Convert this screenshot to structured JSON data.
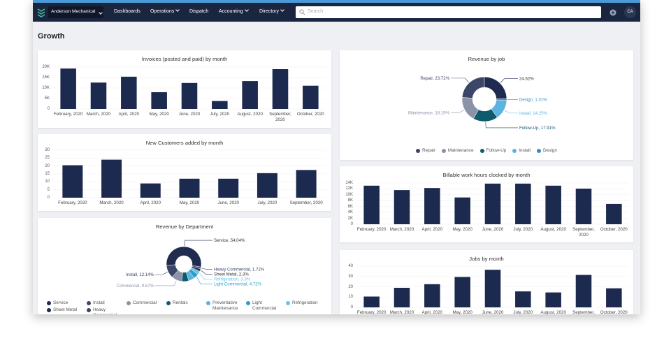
{
  "nav": {
    "company": "Anderson Mechanical",
    "links": [
      "Dashboards",
      "Operations",
      "Dispatch",
      "Accounting",
      "Directory"
    ],
    "search_placeholder": "Search",
    "avatar": "CA"
  },
  "page_title": "Growth",
  "chart_data": [
    {
      "type": "bar",
      "title": "Invoices (posted and paid) by month",
      "color": "#1b2a4e",
      "grid": true,
      "categories": [
        "February, 2020",
        "March, 2020",
        "April, 2020",
        "May, 2020",
        "June, 2020",
        "July, 2020",
        "August, 2020",
        "September, 2020",
        "October, 2020"
      ],
      "values": [
        19300,
        12600,
        15400,
        8000,
        12400,
        3800,
        13300,
        19000,
        11100
      ],
      "ylim": [
        0,
        20000
      ],
      "yticks": [
        0,
        {
          "value": 5000,
          "label": "5K"
        },
        {
          "value": 10000,
          "label": "10K"
        },
        {
          "value": 15000,
          "label": "15K"
        },
        {
          "value": 20000,
          "label": "20K"
        }
      ]
    },
    {
      "type": "bar",
      "title": "New Customers added by month",
      "color": "#1b2a4e",
      "grid": true,
      "categories": [
        "February, 2020",
        "March, 2020",
        "April, 2020",
        "May, 2020",
        "June, 2020",
        "July, 2020",
        "September, 2020"
      ],
      "values": [
        20.5,
        24,
        9,
        12,
        12,
        15.5,
        17.5
      ],
      "ylim": [
        0,
        30
      ],
      "yticks": [
        0,
        5,
        10,
        15,
        20,
        25,
        30
      ]
    },
    {
      "type": "pie",
      "title": "Revenue by Department",
      "categories": [
        "Service",
        "Install",
        "Commercial",
        "Rentals",
        "Preventative Maintenance",
        "Light Commercial",
        "Refrigeration",
        "Sheet Metal",
        "Heavy Commercial"
      ],
      "values": [
        54.04,
        12.14,
        9.67,
        6.5,
        5.61,
        4.72,
        3.3,
        2.3,
        1.72
      ],
      "value_labels": [
        "Service, 54.04%",
        "Install, 12.14%",
        "Commercial, 9.67%",
        null,
        null,
        "Light Commercial, 4.72%",
        "Refrigeration, 3.3%",
        "Sheet Metal, 2.3%",
        "Heavy Commercial, 1.72%"
      ],
      "colors": [
        "#1f2b4f",
        "#3c4767",
        "#8d93a6",
        "#0f5b6d",
        "#5bb3df",
        "#2f9bcb",
        "#6cc3e8",
        "#1f2b4f",
        "#3c4767"
      ]
    },
    {
      "type": "pie",
      "title": "Revenue by job",
      "categories": [
        "Repair",
        "Maintenance",
        "Follow-Up",
        "Install",
        "Design",
        null
      ],
      "values": [
        23.72,
        18.19,
        17.91,
        14.25,
        1.31,
        24.62
      ],
      "value_labels": [
        "Repair, 23.72%",
        "Maintenance, 18.19%",
        "Follow-Up, 17.91%",
        "Install, 14.25%",
        "Design, 1.31%",
        "24.62%"
      ],
      "colors": [
        "#3c4767",
        "#8d93a6",
        "#0f5b6d",
        "#5bb3df",
        "#3a8dc4",
        "#1f2b4f"
      ]
    },
    {
      "type": "bar",
      "title": "Billable work hours clocked by month",
      "color": "#1b2a4e",
      "grid": true,
      "categories": [
        "February, 2020",
        "March, 2020",
        "April, 2020",
        "May, 2020",
        "June, 2020",
        "July, 2020",
        "August, 2020",
        "September, 2020",
        "October, 2020"
      ],
      "values": [
        13100,
        11600,
        12300,
        9100,
        13800,
        13800,
        13100,
        12100,
        6900
      ],
      "ylim": [
        0,
        14000
      ],
      "yticks": [
        0,
        {
          "value": 2000,
          "label": "2K"
        },
        {
          "value": 4000,
          "label": "4K"
        },
        {
          "value": 6000,
          "label": "6K"
        },
        {
          "value": 8000,
          "label": "8K"
        },
        {
          "value": 10000,
          "label": "10K"
        },
        {
          "value": 12000,
          "label": "12K"
        },
        {
          "value": 14000,
          "label": "14K"
        }
      ]
    },
    {
      "type": "bar",
      "title": "Jobs by month",
      "color": "#1b2a4e",
      "grid": true,
      "categories": [
        "February, 2020",
        "March, 2020",
        "April, 2020",
        "May, 2020",
        "June, 2020",
        "July, 2020",
        "August, 2020",
        "September, 2020",
        "October, 2020"
      ],
      "values": [
        10.5,
        19,
        22.5,
        29.5,
        36.5,
        15.5,
        14.5,
        31.5,
        18.5
      ],
      "ylim": [
        0,
        40
      ],
      "yticks": [
        0,
        10,
        20,
        30,
        40
      ]
    }
  ]
}
